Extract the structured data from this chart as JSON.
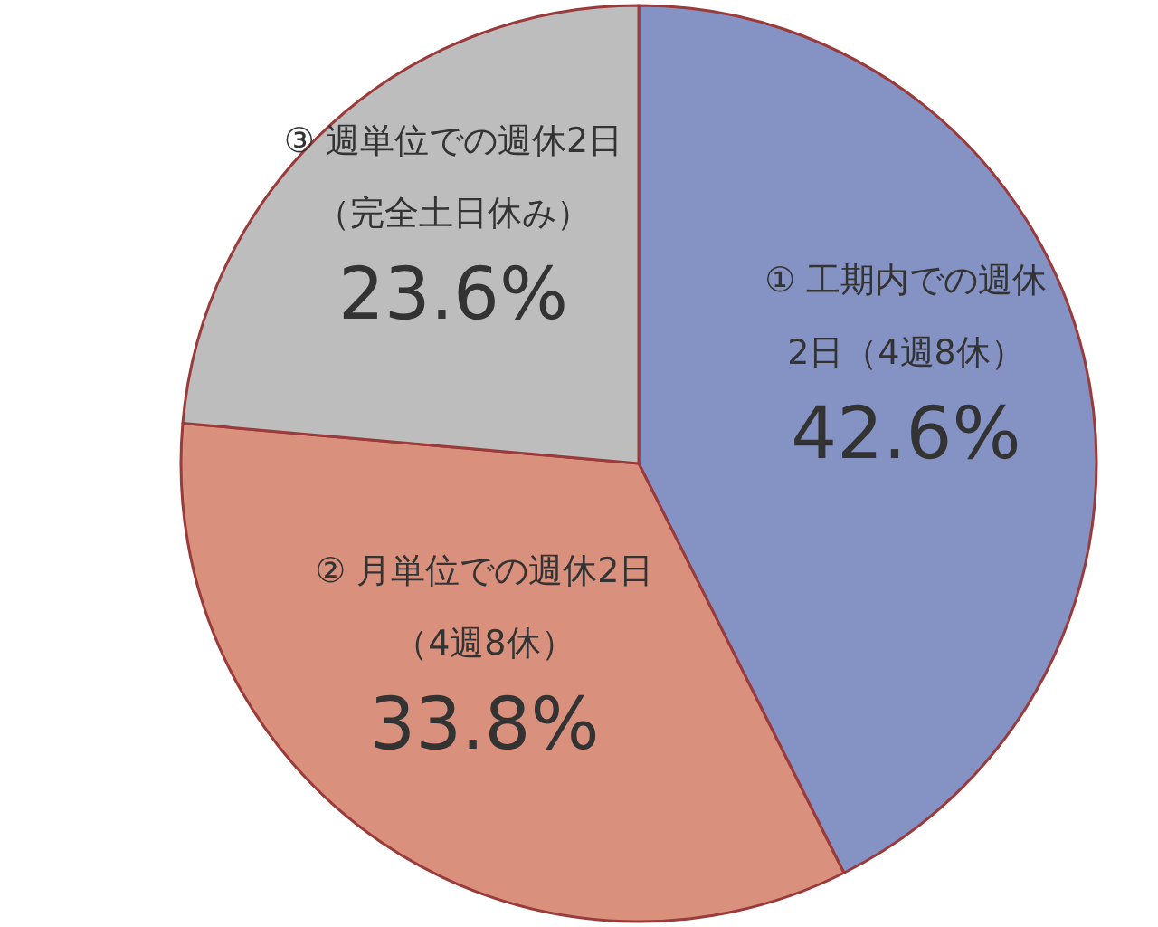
{
  "chart_data": {
    "type": "pie",
    "categories": [
      "① 工期内での週休2日（4週8休）",
      "② 月単位での週休2日（4週8休）",
      "③ 週単位での週休2日（完全土日休み）"
    ],
    "values": [
      42.6,
      33.8,
      23.6
    ],
    "colors": [
      "#8592c4",
      "#d9907c",
      "#bdbdbd"
    ],
    "value_labels": [
      "42.6%",
      "33.8%",
      "23.6%"
    ]
  }
}
